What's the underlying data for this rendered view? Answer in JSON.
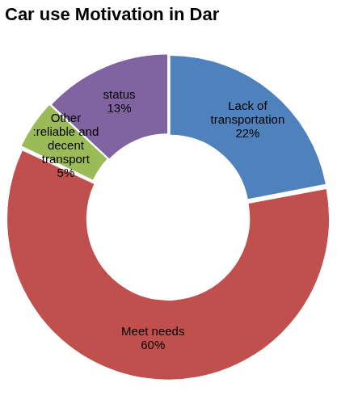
{
  "chart_data": {
    "type": "doughnut",
    "title": "Car use Motivation in Dar",
    "categories": [
      "Lack of transportation",
      "Meet needs",
      "Other :reliable and decent transport",
      "status"
    ],
    "values": [
      22,
      60,
      5,
      13
    ],
    "value_labels": [
      "22%",
      "60%",
      "5%",
      "13%"
    ],
    "colors": [
      "#4f81bd",
      "#c0504d",
      "#9bbb59",
      "#8064a2"
    ],
    "data_labels": true
  }
}
